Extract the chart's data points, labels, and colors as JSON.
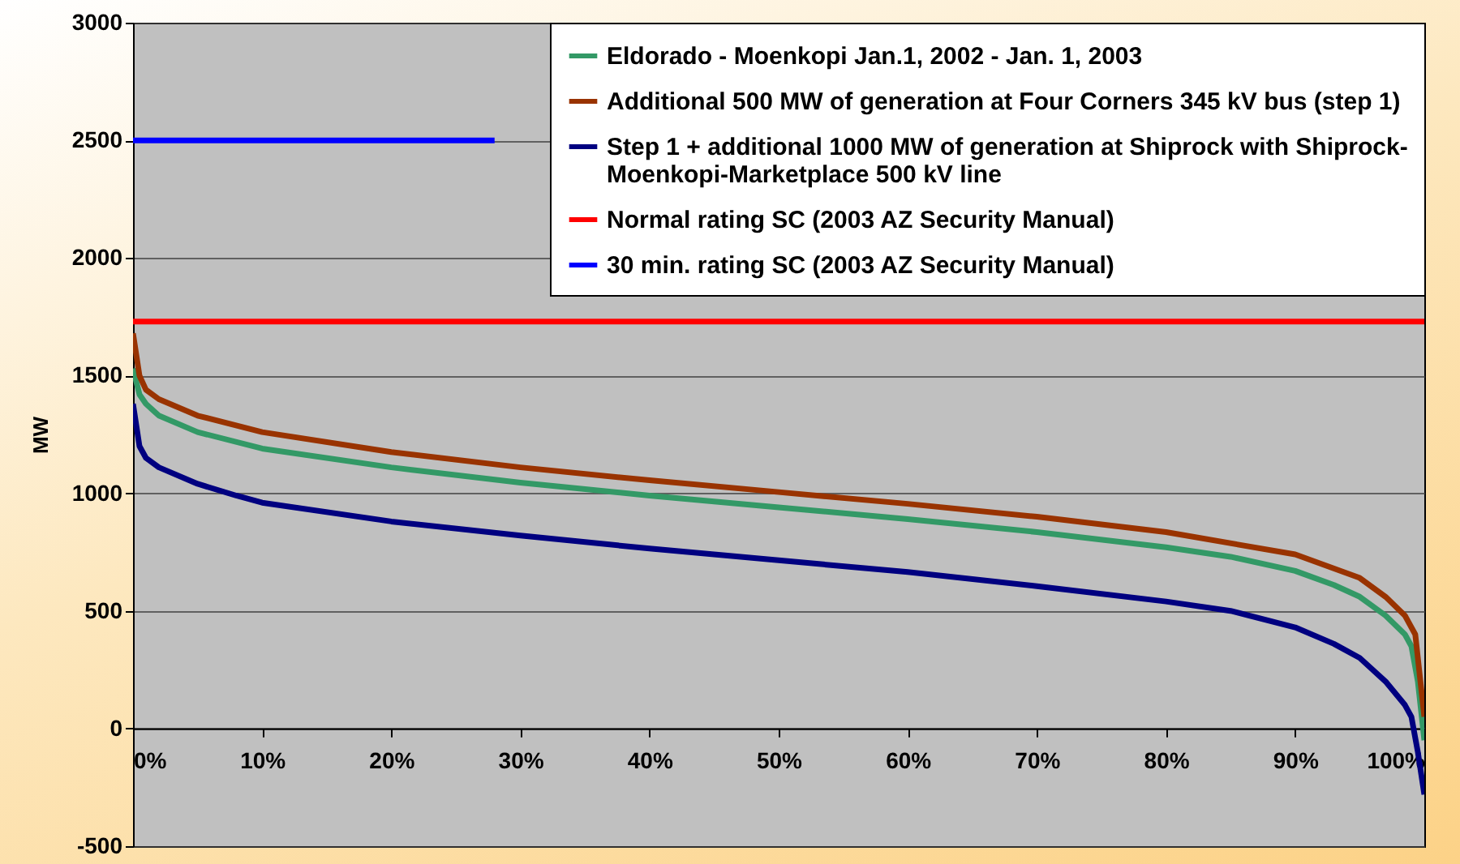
{
  "chart_data": {
    "type": "line",
    "ylabel": "MW",
    "xlim": [
      0,
      100
    ],
    "xticks": [
      {
        "value": 0,
        "label": "0%"
      },
      {
        "value": 10,
        "label": "10%"
      },
      {
        "value": 20,
        "label": "20%"
      },
      {
        "value": 30,
        "label": "30%"
      },
      {
        "value": 40,
        "label": "40%"
      },
      {
        "value": 50,
        "label": "50%"
      },
      {
        "value": 60,
        "label": "60%"
      },
      {
        "value": 70,
        "label": "70%"
      },
      {
        "value": 80,
        "label": "80%"
      },
      {
        "value": 90,
        "label": "90%"
      },
      {
        "value": 100,
        "label": "100%"
      }
    ],
    "ylim": [
      -500,
      3000
    ],
    "yticks": [
      -500,
      0,
      500,
      1000,
      1500,
      2000,
      2500,
      3000
    ],
    "grid": "y",
    "legend": "top right",
    "series": [
      {
        "name": "Eldorado - Moenkopi Jan.1, 2002 - Jan. 1, 2003",
        "color": "#339966",
        "x": [
          0,
          0.5,
          1,
          2,
          5,
          10,
          20,
          30,
          40,
          50,
          60,
          70,
          80,
          85,
          90,
          93,
          95,
          97,
          98.5,
          99,
          99.5,
          100
        ],
        "values": [
          1530,
          1420,
          1380,
          1330,
          1260,
          1190,
          1110,
          1045,
          990,
          940,
          890,
          835,
          770,
          730,
          670,
          610,
          560,
          480,
          400,
          350,
          200,
          -50
        ]
      },
      {
        "name": "Additional 500 MW of generation at Four Corners 345 kV bus (step 1)",
        "color": "#993300",
        "x": [
          0,
          0.5,
          1,
          2,
          5,
          10,
          20,
          30,
          40,
          50,
          60,
          70,
          80,
          90,
          95,
          97,
          98.5,
          99.3,
          99.7,
          100
        ],
        "values": [
          1680,
          1500,
          1440,
          1400,
          1330,
          1260,
          1175,
          1110,
          1055,
          1005,
          955,
          900,
          835,
          740,
          640,
          560,
          480,
          400,
          200,
          50
        ]
      },
      {
        "name": "Step 1 + additional 1000 MW of generation at Shiprock with Shiprock-Moenkopi-Marketplace 500 kV line",
        "color": "#000080",
        "x": [
          0,
          0.5,
          1,
          2,
          5,
          8,
          10,
          20,
          30,
          40,
          50,
          60,
          70,
          80,
          85,
          90,
          93,
          95,
          97,
          98.5,
          99,
          99.5,
          100
        ],
        "values": [
          1380,
          1200,
          1150,
          1110,
          1040,
          990,
          960,
          880,
          820,
          765,
          715,
          665,
          605,
          540,
          500,
          430,
          360,
          300,
          200,
          100,
          50,
          -100,
          -280
        ]
      },
      {
        "name": "Normal rating SC (2003 AZ Security Manual)",
        "color": "#ff0000",
        "x": [
          0,
          100
        ],
        "values": [
          1730,
          1730
        ]
      },
      {
        "name": "30 min. rating SC (2003 AZ Security Manual)",
        "color": "#0000ff",
        "x": [
          0,
          28
        ],
        "values": [
          2500,
          2500
        ]
      }
    ]
  }
}
